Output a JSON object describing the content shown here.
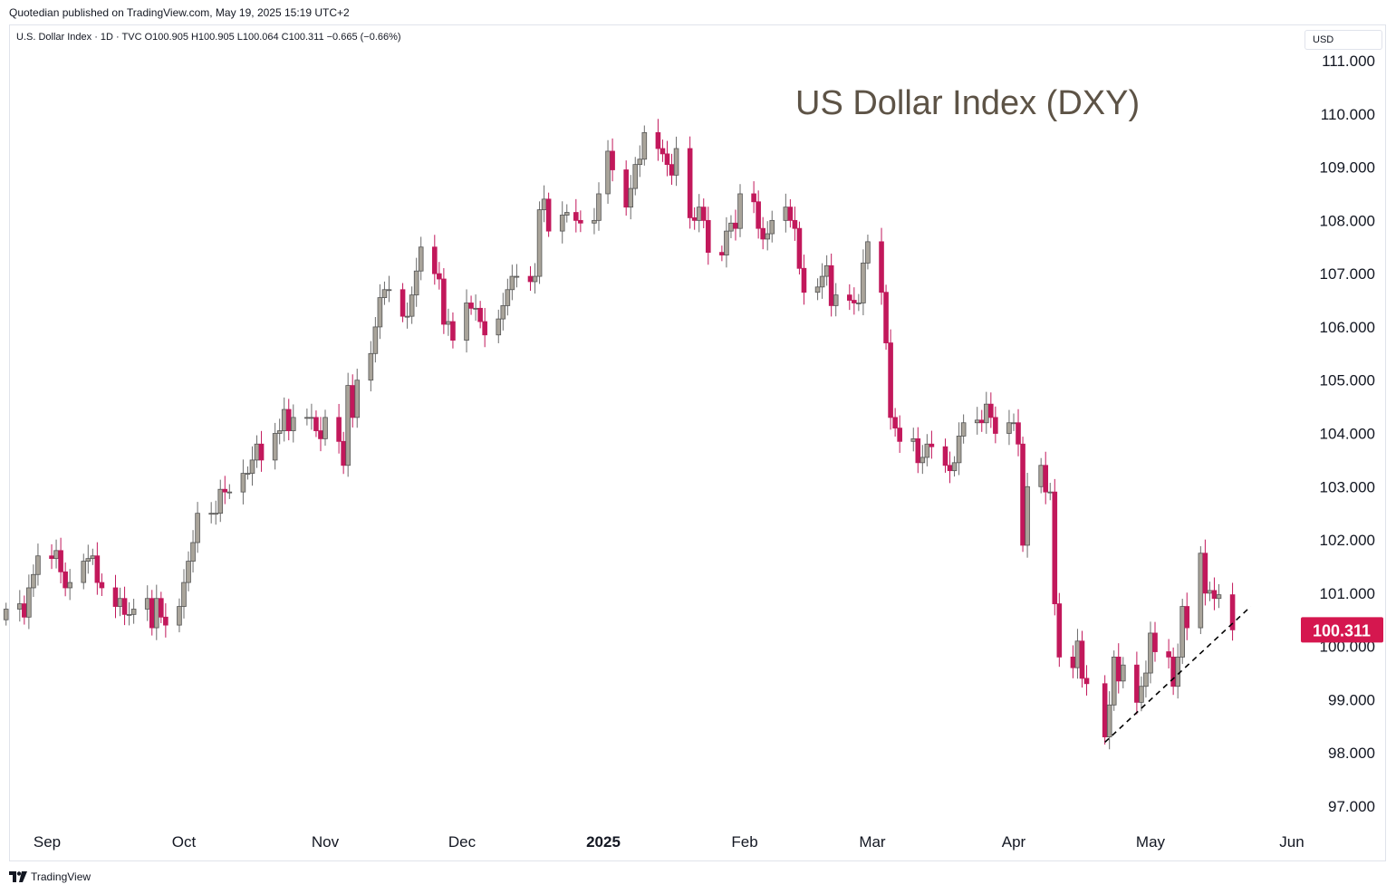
{
  "header": {
    "published_text": "Quotedian published on TradingView.com, May 19, 2025 15:19 UTC+2",
    "symbol_line": "U.S. Dollar Index · 1D · TVC  O100.905  H100.905  L100.064  C100.311  −0.665 (−0.66%)",
    "currency": "USD"
  },
  "footer": {
    "brand": "TradingView",
    "logo_icon": "tradingview-logo-icon"
  },
  "colors": {
    "up": "#a9a49a",
    "down": "#c2185b",
    "price_label": "#d5174f",
    "axis_text": "#131722",
    "title": "#5d5346"
  },
  "chart_data": {
    "type": "candlestick",
    "title": "US Dollar Index (DXY)",
    "ylim": [
      96.6,
      111.7
    ],
    "y_ticks": [
      "111.000",
      "110.000",
      "109.000",
      "108.000",
      "107.000",
      "106.000",
      "105.000",
      "104.000",
      "103.000",
      "102.000",
      "101.000",
      "100.000",
      "99.000",
      "98.000",
      "97.000"
    ],
    "x_ticks": [
      {
        "label": "Sep",
        "date": "2024-09-01",
        "bold": false
      },
      {
        "label": "Oct",
        "date": "2024-10-01",
        "bold": false
      },
      {
        "label": "Nov",
        "date": "2024-11-01",
        "bold": false
      },
      {
        "label": "Dec",
        "date": "2024-12-01",
        "bold": false
      },
      {
        "label": "2025",
        "date": "2025-01-01",
        "bold": true
      },
      {
        "label": "Feb",
        "date": "2025-02-01",
        "bold": false
      },
      {
        "label": "Mar",
        "date": "2025-03-01",
        "bold": false
      },
      {
        "label": "Apr",
        "date": "2025-04-01",
        "bold": false
      },
      {
        "label": "May",
        "date": "2025-05-01",
        "bold": false
      },
      {
        "label": "Jun",
        "date": "2025-06-01",
        "bold": false
      }
    ],
    "last_price": {
      "value": 100.311,
      "label": "100.311"
    },
    "trendline": {
      "from": {
        "date": "2025-04-21",
        "y": 98.2
      },
      "to": {
        "date": "2025-05-23",
        "y": 100.75
      }
    },
    "candles": [
      {
        "d": "2024-08-23",
        "c": 100.7
      },
      {
        "d": "2024-08-26",
        "c": 100.8
      },
      {
        "d": "2024-08-27",
        "c": 100.55
      },
      {
        "d": "2024-08-28",
        "c": 101.1
      },
      {
        "d": "2024-08-29",
        "c": 101.35
      },
      {
        "d": "2024-08-30",
        "c": 101.7
      },
      {
        "d": "2024-09-02",
        "c": 101.65
      },
      {
        "d": "2024-09-03",
        "c": 101.8
      },
      {
        "d": "2024-09-04",
        "c": 101.4
      },
      {
        "d": "2024-09-05",
        "c": 101.1
      },
      {
        "d": "2024-09-06",
        "c": 101.2
      },
      {
        "d": "2024-09-09",
        "c": 101.6
      },
      {
        "d": "2024-09-10",
        "c": 101.65
      },
      {
        "d": "2024-09-11",
        "c": 101.7
      },
      {
        "d": "2024-09-12",
        "c": 101.2
      },
      {
        "d": "2024-09-13",
        "c": 101.1
      },
      {
        "d": "2024-09-16",
        "c": 100.75
      },
      {
        "d": "2024-09-17",
        "c": 100.9
      },
      {
        "d": "2024-09-18",
        "c": 100.6
      },
      {
        "d": "2024-09-19",
        "c": 100.6
      },
      {
        "d": "2024-09-20",
        "c": 100.7
      },
      {
        "d": "2024-09-23",
        "c": 100.9
      },
      {
        "d": "2024-09-24",
        "c": 100.35
      },
      {
        "d": "2024-09-25",
        "c": 100.9
      },
      {
        "d": "2024-09-26",
        "c": 100.55
      },
      {
        "d": "2024-09-27",
        "c": 100.4
      },
      {
        "d": "2024-09-30",
        "c": 100.75
      },
      {
        "d": "2024-10-01",
        "c": 101.2
      },
      {
        "d": "2024-10-02",
        "c": 101.6
      },
      {
        "d": "2024-10-03",
        "c": 101.95
      },
      {
        "d": "2024-10-04",
        "c": 102.5
      },
      {
        "d": "2024-10-07",
        "c": 102.5
      },
      {
        "d": "2024-10-08",
        "c": 102.5
      },
      {
        "d": "2024-10-09",
        "c": 102.95
      },
      {
        "d": "2024-10-10",
        "c": 102.9
      },
      {
        "d": "2024-10-11",
        "c": 102.9
      },
      {
        "d": "2024-10-14",
        "c": 103.25
      },
      {
        "d": "2024-10-15",
        "c": 103.25
      },
      {
        "d": "2024-10-16",
        "c": 103.5
      },
      {
        "d": "2024-10-17",
        "c": 103.8
      },
      {
        "d": "2024-10-18",
        "c": 103.5
      },
      {
        "d": "2024-10-21",
        "c": 104.0
      },
      {
        "d": "2024-10-22",
        "c": 104.05
      },
      {
        "d": "2024-10-23",
        "c": 104.45
      },
      {
        "d": "2024-10-24",
        "c": 104.05
      },
      {
        "d": "2024-10-25",
        "c": 104.3
      },
      {
        "d": "2024-10-28",
        "c": 104.3
      },
      {
        "d": "2024-10-29",
        "c": 104.3
      },
      {
        "d": "2024-10-30",
        "c": 104.05
      },
      {
        "d": "2024-10-31",
        "c": 103.9
      },
      {
        "d": "2024-11-01",
        "c": 104.3
      },
      {
        "d": "2024-11-04",
        "c": 103.85
      },
      {
        "d": "2024-11-05",
        "c": 103.4
      },
      {
        "d": "2024-11-06",
        "c": 104.9
      },
      {
        "d": "2024-11-07",
        "c": 104.3
      },
      {
        "d": "2024-11-08",
        "c": 105.0
      },
      {
        "d": "2024-11-11",
        "c": 105.5
      },
      {
        "d": "2024-11-12",
        "c": 106.0
      },
      {
        "d": "2024-11-13",
        "c": 106.55
      },
      {
        "d": "2024-11-14",
        "c": 106.7
      },
      {
        "d": "2024-11-15",
        "c": 106.7
      },
      {
        "d": "2024-11-18",
        "c": 106.2
      },
      {
        "d": "2024-11-19",
        "c": 106.2
      },
      {
        "d": "2024-11-20",
        "c": 106.6
      },
      {
        "d": "2024-11-21",
        "c": 107.05
      },
      {
        "d": "2024-11-22",
        "c": 107.5
      },
      {
        "d": "2024-11-25",
        "c": 107.0
      },
      {
        "d": "2024-11-26",
        "c": 106.9
      },
      {
        "d": "2024-11-27",
        "c": 106.05
      },
      {
        "d": "2024-11-28",
        "c": 106.1
      },
      {
        "d": "2024-11-29",
        "c": 105.75
      },
      {
        "d": "2024-12-02",
        "c": 106.45
      },
      {
        "d": "2024-12-03",
        "c": 106.35
      },
      {
        "d": "2024-12-04",
        "c": 106.35
      },
      {
        "d": "2024-12-05",
        "c": 106.1
      },
      {
        "d": "2024-12-06",
        "c": 105.85
      },
      {
        "d": "2024-12-09",
        "c": 106.15
      },
      {
        "d": "2024-12-10",
        "c": 106.4
      },
      {
        "d": "2024-12-11",
        "c": 106.7
      },
      {
        "d": "2024-12-12",
        "c": 106.95
      },
      {
        "d": "2024-12-13",
        "c": 106.95
      },
      {
        "d": "2024-12-16",
        "c": 106.85
      },
      {
        "d": "2024-12-17",
        "c": 106.95
      },
      {
        "d": "2024-12-18",
        "c": 108.2
      },
      {
        "d": "2024-12-19",
        "c": 108.4
      },
      {
        "d": "2024-12-20",
        "c": 107.8
      },
      {
        "d": "2024-12-23",
        "c": 108.1
      },
      {
        "d": "2024-12-24",
        "c": 108.15
      },
      {
        "d": "2024-12-26",
        "c": 108.0
      },
      {
        "d": "2024-12-27",
        "c": 107.95
      },
      {
        "d": "2024-12-30",
        "c": 108.0
      },
      {
        "d": "2024-12-31",
        "c": 108.5
      },
      {
        "d": "2025-01-02",
        "c": 109.3
      },
      {
        "d": "2025-01-03",
        "c": 108.95
      },
      {
        "d": "2025-01-06",
        "c": 108.25
      },
      {
        "d": "2025-01-07",
        "c": 108.6
      },
      {
        "d": "2025-01-08",
        "c": 109.05
      },
      {
        "d": "2025-01-09",
        "c": 109.15
      },
      {
        "d": "2025-01-10",
        "c": 109.65
      },
      {
        "d": "2025-01-13",
        "c": 109.35
      },
      {
        "d": "2025-01-14",
        "c": 109.25
      },
      {
        "d": "2025-01-15",
        "c": 109.05
      },
      {
        "d": "2025-01-16",
        "c": 108.85
      },
      {
        "d": "2025-01-17",
        "c": 109.35
      },
      {
        "d": "2025-01-20",
        "c": 108.05
      },
      {
        "d": "2025-01-21",
        "c": 108.0
      },
      {
        "d": "2025-01-22",
        "c": 108.25
      },
      {
        "d": "2025-01-23",
        "c": 108.0
      },
      {
        "d": "2025-01-24",
        "c": 107.4
      },
      {
        "d": "2025-01-27",
        "c": 107.35
      },
      {
        "d": "2025-01-28",
        "c": 107.8
      },
      {
        "d": "2025-01-29",
        "c": 107.95
      },
      {
        "d": "2025-01-30",
        "c": 107.85
      },
      {
        "d": "2025-01-31",
        "c": 108.5
      },
      {
        "d": "2025-02-03",
        "c": 108.35
      },
      {
        "d": "2025-02-04",
        "c": 107.85
      },
      {
        "d": "2025-02-05",
        "c": 107.65
      },
      {
        "d": "2025-02-06",
        "c": 107.75
      },
      {
        "d": "2025-02-07",
        "c": 108.0
      },
      {
        "d": "2025-02-10",
        "c": 108.25
      },
      {
        "d": "2025-02-11",
        "c": 108.0
      },
      {
        "d": "2025-02-12",
        "c": 107.85
      },
      {
        "d": "2025-02-13",
        "c": 107.1
      },
      {
        "d": "2025-02-14",
        "c": 106.65
      },
      {
        "d": "2025-02-17",
        "c": 106.75
      },
      {
        "d": "2025-02-18",
        "c": 106.95
      },
      {
        "d": "2025-02-19",
        "c": 107.15
      },
      {
        "d": "2025-02-20",
        "c": 106.4
      },
      {
        "d": "2025-02-21",
        "c": 106.6
      },
      {
        "d": "2025-02-24",
        "c": 106.5
      },
      {
        "d": "2025-02-25",
        "c": 106.45
      },
      {
        "d": "2025-02-26",
        "c": 106.45
      },
      {
        "d": "2025-02-27",
        "c": 107.2
      },
      {
        "d": "2025-02-28",
        "c": 107.6
      },
      {
        "d": "2025-03-03",
        "c": 106.65
      },
      {
        "d": "2025-03-04",
        "c": 105.7
      },
      {
        "d": "2025-03-05",
        "c": 104.3
      },
      {
        "d": "2025-03-06",
        "c": 104.1
      },
      {
        "d": "2025-03-07",
        "c": 103.85
      },
      {
        "d": "2025-03-10",
        "c": 103.9
      },
      {
        "d": "2025-03-11",
        "c": 103.45
      },
      {
        "d": "2025-03-12",
        "c": 103.55
      },
      {
        "d": "2025-03-13",
        "c": 103.8
      },
      {
        "d": "2025-03-14",
        "c": 103.75
      },
      {
        "d": "2025-03-17",
        "c": 103.4
      },
      {
        "d": "2025-03-18",
        "c": 103.3
      },
      {
        "d": "2025-03-19",
        "c": 103.45
      },
      {
        "d": "2025-03-20",
        "c": 103.95
      },
      {
        "d": "2025-03-21",
        "c": 104.2
      },
      {
        "d": "2025-03-24",
        "c": 104.25
      },
      {
        "d": "2025-03-25",
        "c": 104.2
      },
      {
        "d": "2025-03-26",
        "c": 104.55
      },
      {
        "d": "2025-03-27",
        "c": 104.3
      },
      {
        "d": "2025-03-28",
        "c": 104.0
      },
      {
        "d": "2025-03-31",
        "c": 104.2
      },
      {
        "d": "2025-04-01",
        "c": 104.2
      },
      {
        "d": "2025-04-02",
        "c": 103.8
      },
      {
        "d": "2025-04-03",
        "c": 101.9
      },
      {
        "d": "2025-04-04",
        "c": 103.0
      },
      {
        "d": "2025-04-07",
        "c": 103.4
      },
      {
        "d": "2025-04-08",
        "c": 102.9
      },
      {
        "d": "2025-04-09",
        "c": 102.9
      },
      {
        "d": "2025-04-10",
        "c": 100.8
      },
      {
        "d": "2025-04-11",
        "c": 99.8
      },
      {
        "d": "2025-04-14",
        "c": 99.6
      },
      {
        "d": "2025-04-15",
        "c": 100.1
      },
      {
        "d": "2025-04-16",
        "c": 99.4
      },
      {
        "d": "2025-04-17",
        "c": 99.3
      },
      {
        "d": "2025-04-21",
        "c": 98.3
      },
      {
        "d": "2025-04-22",
        "c": 98.9
      },
      {
        "d": "2025-04-23",
        "c": 99.8
      },
      {
        "d": "2025-04-24",
        "c": 99.35
      },
      {
        "d": "2025-04-25",
        "c": 99.65
      },
      {
        "d": "2025-04-28",
        "c": 98.95
      },
      {
        "d": "2025-04-29",
        "c": 99.25
      },
      {
        "d": "2025-04-30",
        "c": 99.5
      },
      {
        "d": "2025-05-01",
        "c": 100.25
      },
      {
        "d": "2025-05-02",
        "c": 99.9
      },
      {
        "d": "2025-05-05",
        "c": 99.8
      },
      {
        "d": "2025-05-06",
        "c": 99.25
      },
      {
        "d": "2025-05-07",
        "c": 99.8
      },
      {
        "d": "2025-05-08",
        "c": 100.75
      },
      {
        "d": "2025-05-09",
        "c": 100.35
      },
      {
        "d": "2025-05-12",
        "c": 101.75
      },
      {
        "d": "2025-05-13",
        "c": 101.0
      },
      {
        "d": "2025-05-14",
        "c": 101.05
      },
      {
        "d": "2025-05-15",
        "c": 100.9
      },
      {
        "d": "2025-05-16",
        "c": 100.97
      },
      {
        "d": "2025-05-19",
        "c": 100.311
      }
    ]
  }
}
